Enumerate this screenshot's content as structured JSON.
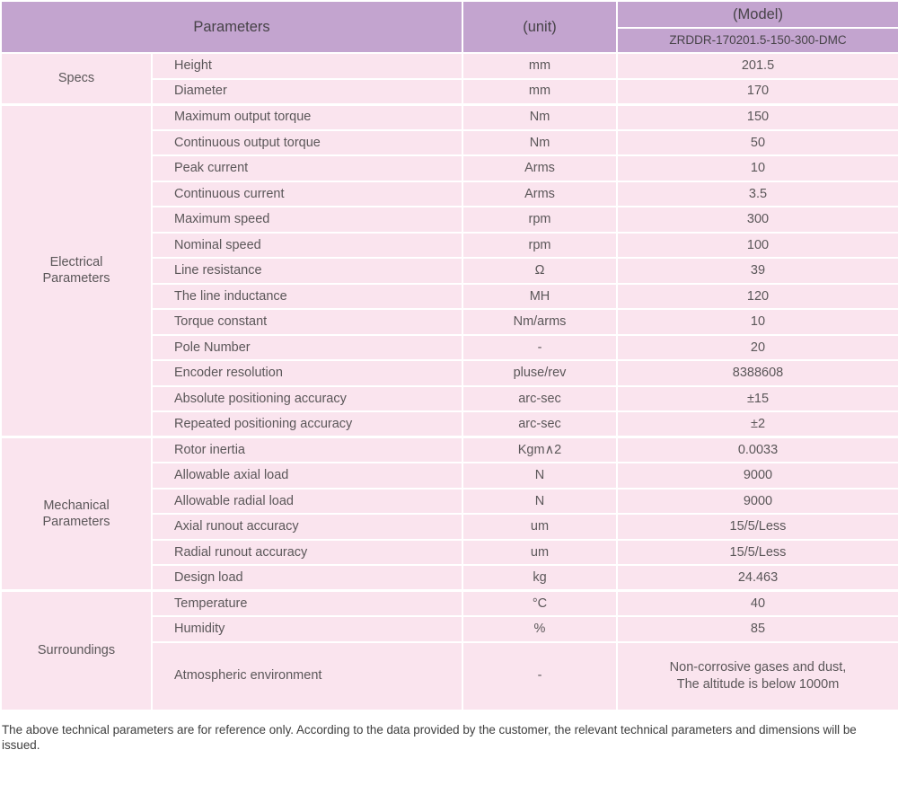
{
  "colors": {
    "header_bg": "#c3a4cf",
    "row_bg": "#fae4ee",
    "grid": "#ffffff",
    "text": "#5b5759",
    "header_text": "#474348",
    "footer_text": "#3d3d3d"
  },
  "header": {
    "parameters_label": "Parameters",
    "unit_label": "(unit)",
    "model_label": "(Model)",
    "model_value": "ZRDDR-170201.5-150-300-DMC"
  },
  "sections": [
    {
      "group": "Specs",
      "rows": [
        {
          "name": "Height",
          "unit": "mm",
          "value": "201.5"
        },
        {
          "name": "Diameter",
          "unit": "mm",
          "value": "170"
        }
      ]
    },
    {
      "group": "Electrical\nParameters",
      "rows": [
        {
          "name": "Maximum output torque",
          "unit": "Nm",
          "value": "150"
        },
        {
          "name": "Continuous output torque",
          "unit": "Nm",
          "value": "50"
        },
        {
          "name": "Peak current",
          "unit": "Arms",
          "value": "10"
        },
        {
          "name": "Continuous current",
          "unit": "Arms",
          "value": "3.5"
        },
        {
          "name": "Maximum speed",
          "unit": "rpm",
          "value": "300"
        },
        {
          "name": "Nominal speed",
          "unit": "rpm",
          "value": "100"
        },
        {
          "name": "Line resistance",
          "unit": "Ω",
          "value": "39"
        },
        {
          "name": "The line inductance",
          "unit": "MH",
          "value": "120"
        },
        {
          "name": "Torque constant",
          "unit": "Nm/arms",
          "value": "10"
        },
        {
          "name": "Pole Number",
          "unit": "-",
          "value": "20"
        },
        {
          "name": "Encoder resolution",
          "unit": "pluse/rev",
          "value": "8388608"
        },
        {
          "name": "Absolute positioning accuracy",
          "unit": "arc-sec",
          "value": "±15"
        },
        {
          "name": "Repeated positioning accuracy",
          "unit": "arc-sec",
          "value": "±2"
        }
      ]
    },
    {
      "group": "Mechanical\nParameters",
      "rows": [
        {
          "name": "Rotor inertia",
          "unit": "Kgm∧2",
          "value": "0.0033"
        },
        {
          "name": "Allowable axial load",
          "unit": "N",
          "value": "9000"
        },
        {
          "name": "Allowable radial load",
          "unit": "N",
          "value": "9000"
        },
        {
          "name": "Axial runout accuracy",
          "unit": "um",
          "value": "15/5/Less"
        },
        {
          "name": "Radial runout accuracy",
          "unit": "um",
          "value": "15/5/Less"
        },
        {
          "name": "Design load",
          "unit": "kg",
          "value": "24.463"
        }
      ]
    },
    {
      "group": "Surroundings",
      "rows": [
        {
          "name": "Temperature",
          "unit": "°C",
          "value": "40"
        },
        {
          "name": "Humidity",
          "unit": "%",
          "value": "85"
        },
        {
          "name": "Atmospheric environment",
          "unit": "-",
          "value": "Non-corrosive gases and dust,\nThe altitude is below 1000m",
          "tall": true
        }
      ]
    }
  ],
  "footer": {
    "note": "The above technical parameters are for reference only. According to the data provided by the customer, the relevant technical parameters and dimensions will be issued."
  }
}
